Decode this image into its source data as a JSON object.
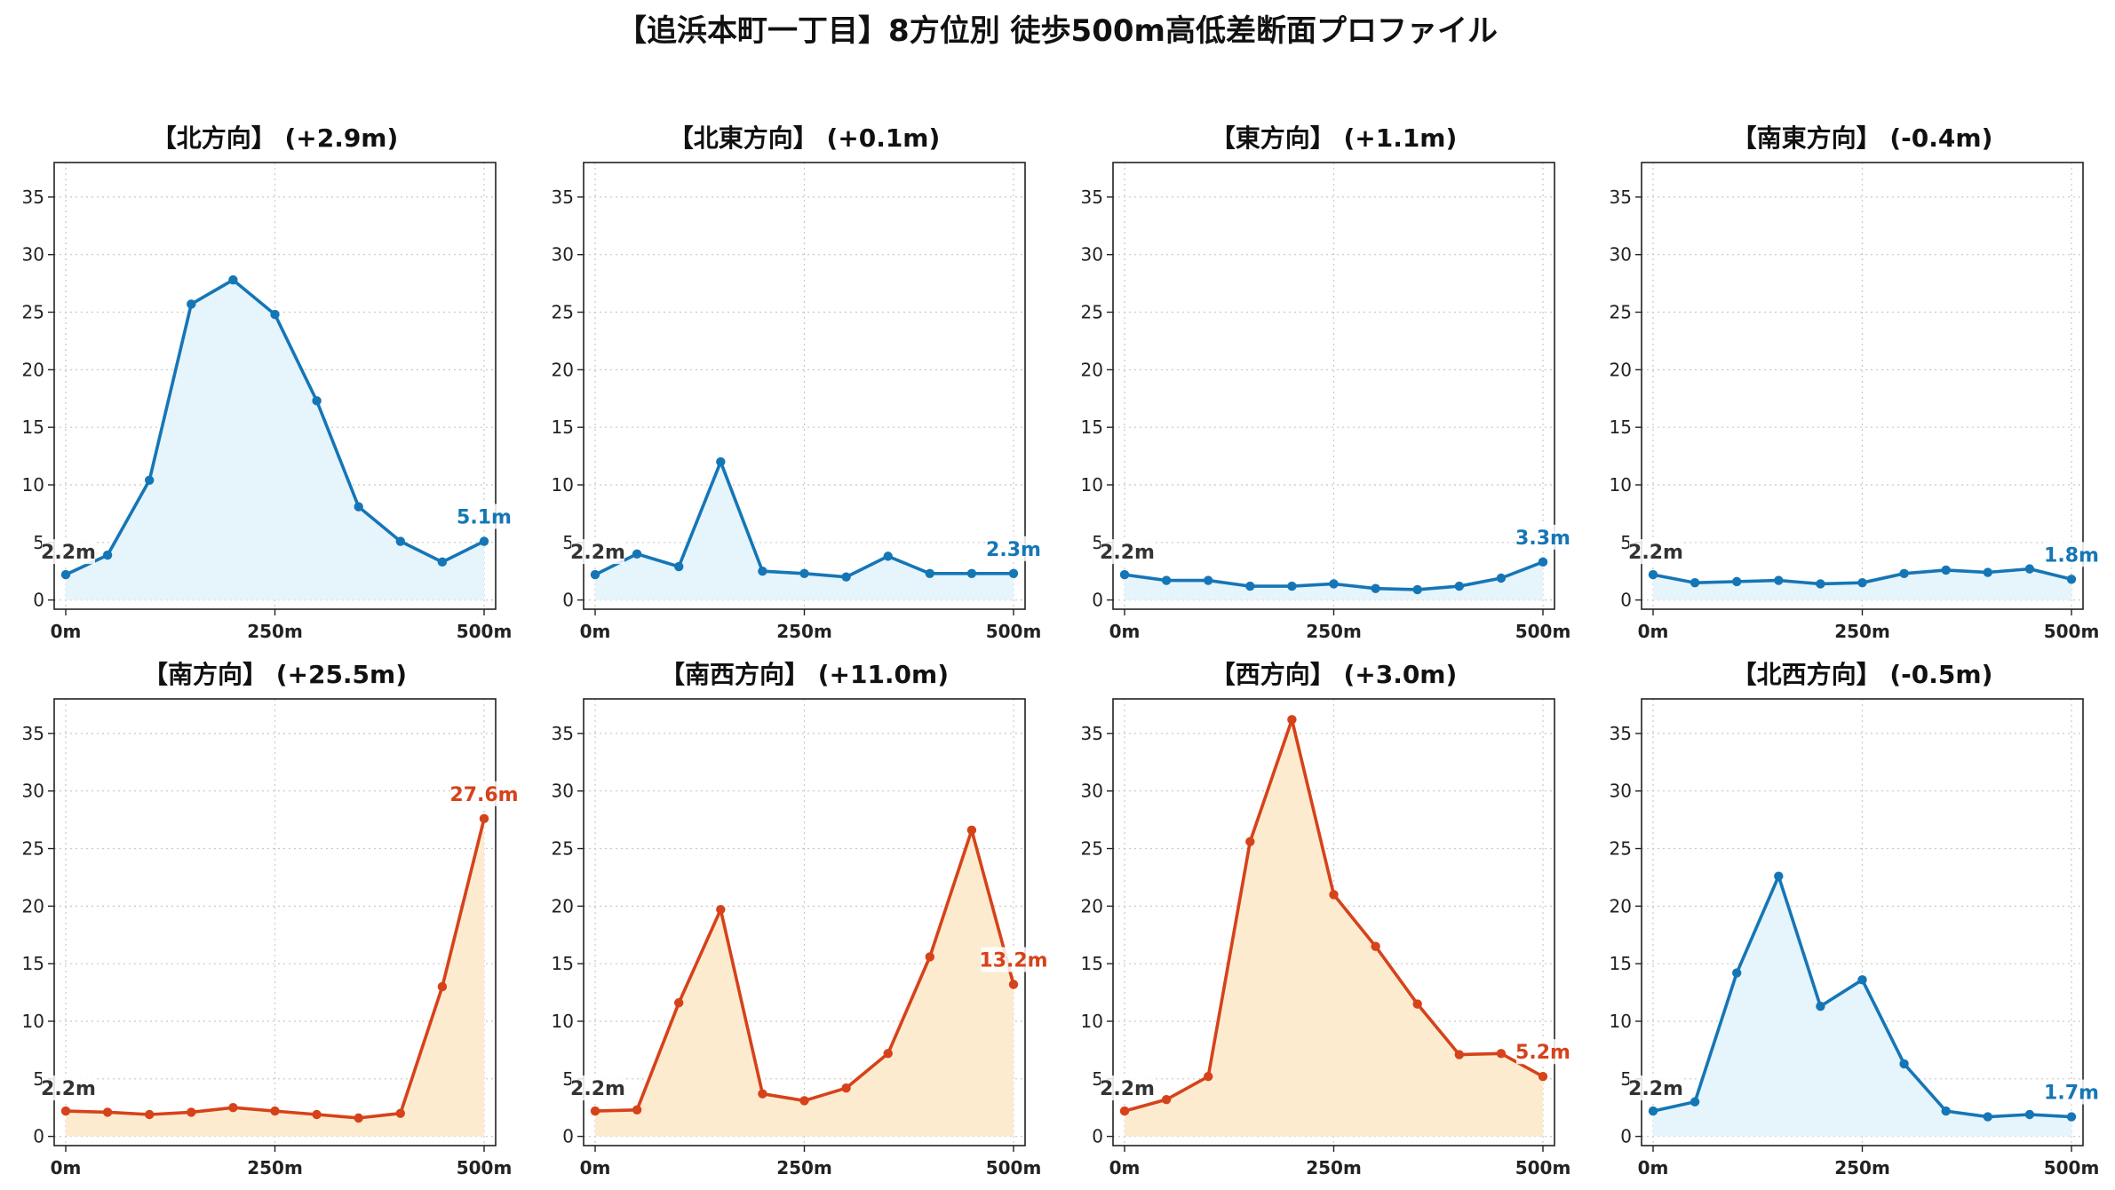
{
  "title": "【追浜本町一丁目】8方位別 徒歩500m高低差断面プロファイル",
  "colors": {
    "up_line": "#d6421a",
    "up_fill": "#fdebd0",
    "down_line": "#1576b6",
    "down_fill": "#e6f4fb",
    "grid": "#c8c8c8",
    "start_label": "#333333"
  },
  "chart_data": [
    {
      "type": "area",
      "title": "【北方向】 (+2.9m)",
      "trend": "down",
      "x": [
        0,
        50,
        100,
        150,
        200,
        250,
        300,
        350,
        400,
        450,
        500
      ],
      "values": [
        2.2,
        3.9,
        10.4,
        25.7,
        27.8,
        24.8,
        17.3,
        8.1,
        5.1,
        3.3,
        5.1
      ],
      "start_label": "2.2m",
      "end_label": "5.1m",
      "xlim": [
        0,
        500
      ],
      "ylim": [
        0,
        38
      ],
      "xticks": [
        "0m",
        "250m",
        "500m"
      ],
      "yticks": [
        0,
        5,
        10,
        15,
        20,
        25,
        30,
        35
      ],
      "grid": true
    },
    {
      "type": "area",
      "title": "【北東方向】 (+0.1m)",
      "trend": "down",
      "x": [
        0,
        50,
        100,
        150,
        200,
        250,
        300,
        350,
        400,
        450,
        500
      ],
      "values": [
        2.2,
        4.0,
        2.9,
        12.0,
        2.5,
        2.3,
        2.0,
        3.8,
        2.3,
        2.3,
        2.3
      ],
      "start_label": "2.2m",
      "end_label": "2.3m",
      "xlim": [
        0,
        500
      ],
      "ylim": [
        0,
        38
      ],
      "xticks": [
        "0m",
        "250m",
        "500m"
      ],
      "yticks": [
        0,
        5,
        10,
        15,
        20,
        25,
        30,
        35
      ],
      "grid": true
    },
    {
      "type": "area",
      "title": "【東方向】 (+1.1m)",
      "trend": "down",
      "x": [
        0,
        50,
        100,
        150,
        200,
        250,
        300,
        350,
        400,
        450,
        500
      ],
      "values": [
        2.2,
        1.7,
        1.7,
        1.2,
        1.2,
        1.4,
        1.0,
        0.9,
        1.2,
        1.9,
        3.3
      ],
      "start_label": "2.2m",
      "end_label": "3.3m",
      "xlim": [
        0,
        500
      ],
      "ylim": [
        0,
        38
      ],
      "xticks": [
        "0m",
        "250m",
        "500m"
      ],
      "yticks": [
        0,
        5,
        10,
        15,
        20,
        25,
        30,
        35
      ],
      "grid": true
    },
    {
      "type": "area",
      "title": "【南東方向】 (-0.4m)",
      "trend": "down",
      "x": [
        0,
        50,
        100,
        150,
        200,
        250,
        300,
        350,
        400,
        450,
        500
      ],
      "values": [
        2.2,
        1.5,
        1.6,
        1.7,
        1.4,
        1.5,
        2.3,
        2.6,
        2.4,
        2.7,
        1.8
      ],
      "start_label": "2.2m",
      "end_label": "1.8m",
      "xlim": [
        0,
        500
      ],
      "ylim": [
        0,
        38
      ],
      "xticks": [
        "0m",
        "250m",
        "500m"
      ],
      "yticks": [
        0,
        5,
        10,
        15,
        20,
        25,
        30,
        35
      ],
      "grid": true
    },
    {
      "type": "area",
      "title": "【南方向】 (+25.5m)",
      "trend": "up",
      "x": [
        0,
        50,
        100,
        150,
        200,
        250,
        300,
        350,
        400,
        450,
        500
      ],
      "values": [
        2.2,
        2.1,
        1.9,
        2.1,
        2.5,
        2.2,
        1.9,
        1.6,
        2.0,
        13.0,
        27.6
      ],
      "start_label": "2.2m",
      "end_label": "27.6m",
      "xlim": [
        0,
        500
      ],
      "ylim": [
        0,
        38
      ],
      "xticks": [
        "0m",
        "250m",
        "500m"
      ],
      "yticks": [
        0,
        5,
        10,
        15,
        20,
        25,
        30,
        35
      ],
      "grid": true
    },
    {
      "type": "area",
      "title": "【南西方向】 (+11.0m)",
      "trend": "up",
      "x": [
        0,
        50,
        100,
        150,
        200,
        250,
        300,
        350,
        400,
        450,
        500
      ],
      "values": [
        2.2,
        2.3,
        11.6,
        19.7,
        3.7,
        3.1,
        4.2,
        7.2,
        15.6,
        26.6,
        13.2
      ],
      "start_label": "2.2m",
      "end_label": "13.2m",
      "xlim": [
        0,
        500
      ],
      "ylim": [
        0,
        38
      ],
      "xticks": [
        "0m",
        "250m",
        "500m"
      ],
      "yticks": [
        0,
        5,
        10,
        15,
        20,
        25,
        30,
        35
      ],
      "grid": true
    },
    {
      "type": "area",
      "title": "【西方向】 (+3.0m)",
      "trend": "up",
      "x": [
        0,
        50,
        100,
        150,
        200,
        250,
        300,
        350,
        400,
        450,
        500
      ],
      "values": [
        2.2,
        3.2,
        5.2,
        25.6,
        36.2,
        21.0,
        16.5,
        11.5,
        7.1,
        7.2,
        5.2
      ],
      "start_label": "2.2m",
      "end_label": "5.2m",
      "xlim": [
        0,
        500
      ],
      "ylim": [
        0,
        38
      ],
      "xticks": [
        "0m",
        "250m",
        "500m"
      ],
      "yticks": [
        0,
        5,
        10,
        15,
        20,
        25,
        30,
        35
      ],
      "grid": true
    },
    {
      "type": "area",
      "title": "【北西方向】 (-0.5m)",
      "trend": "down",
      "x": [
        0,
        50,
        100,
        150,
        200,
        250,
        300,
        350,
        400,
        450,
        500
      ],
      "values": [
        2.2,
        3.0,
        14.2,
        22.6,
        11.3,
        13.6,
        6.3,
        2.2,
        1.7,
        1.9,
        1.7
      ],
      "start_label": "2.2m",
      "end_label": "1.7m",
      "xlim": [
        0,
        500
      ],
      "ylim": [
        0,
        38
      ],
      "xticks": [
        "0m",
        "250m",
        "500m"
      ],
      "yticks": [
        0,
        5,
        10,
        15,
        20,
        25,
        30,
        35
      ],
      "grid": true
    }
  ]
}
